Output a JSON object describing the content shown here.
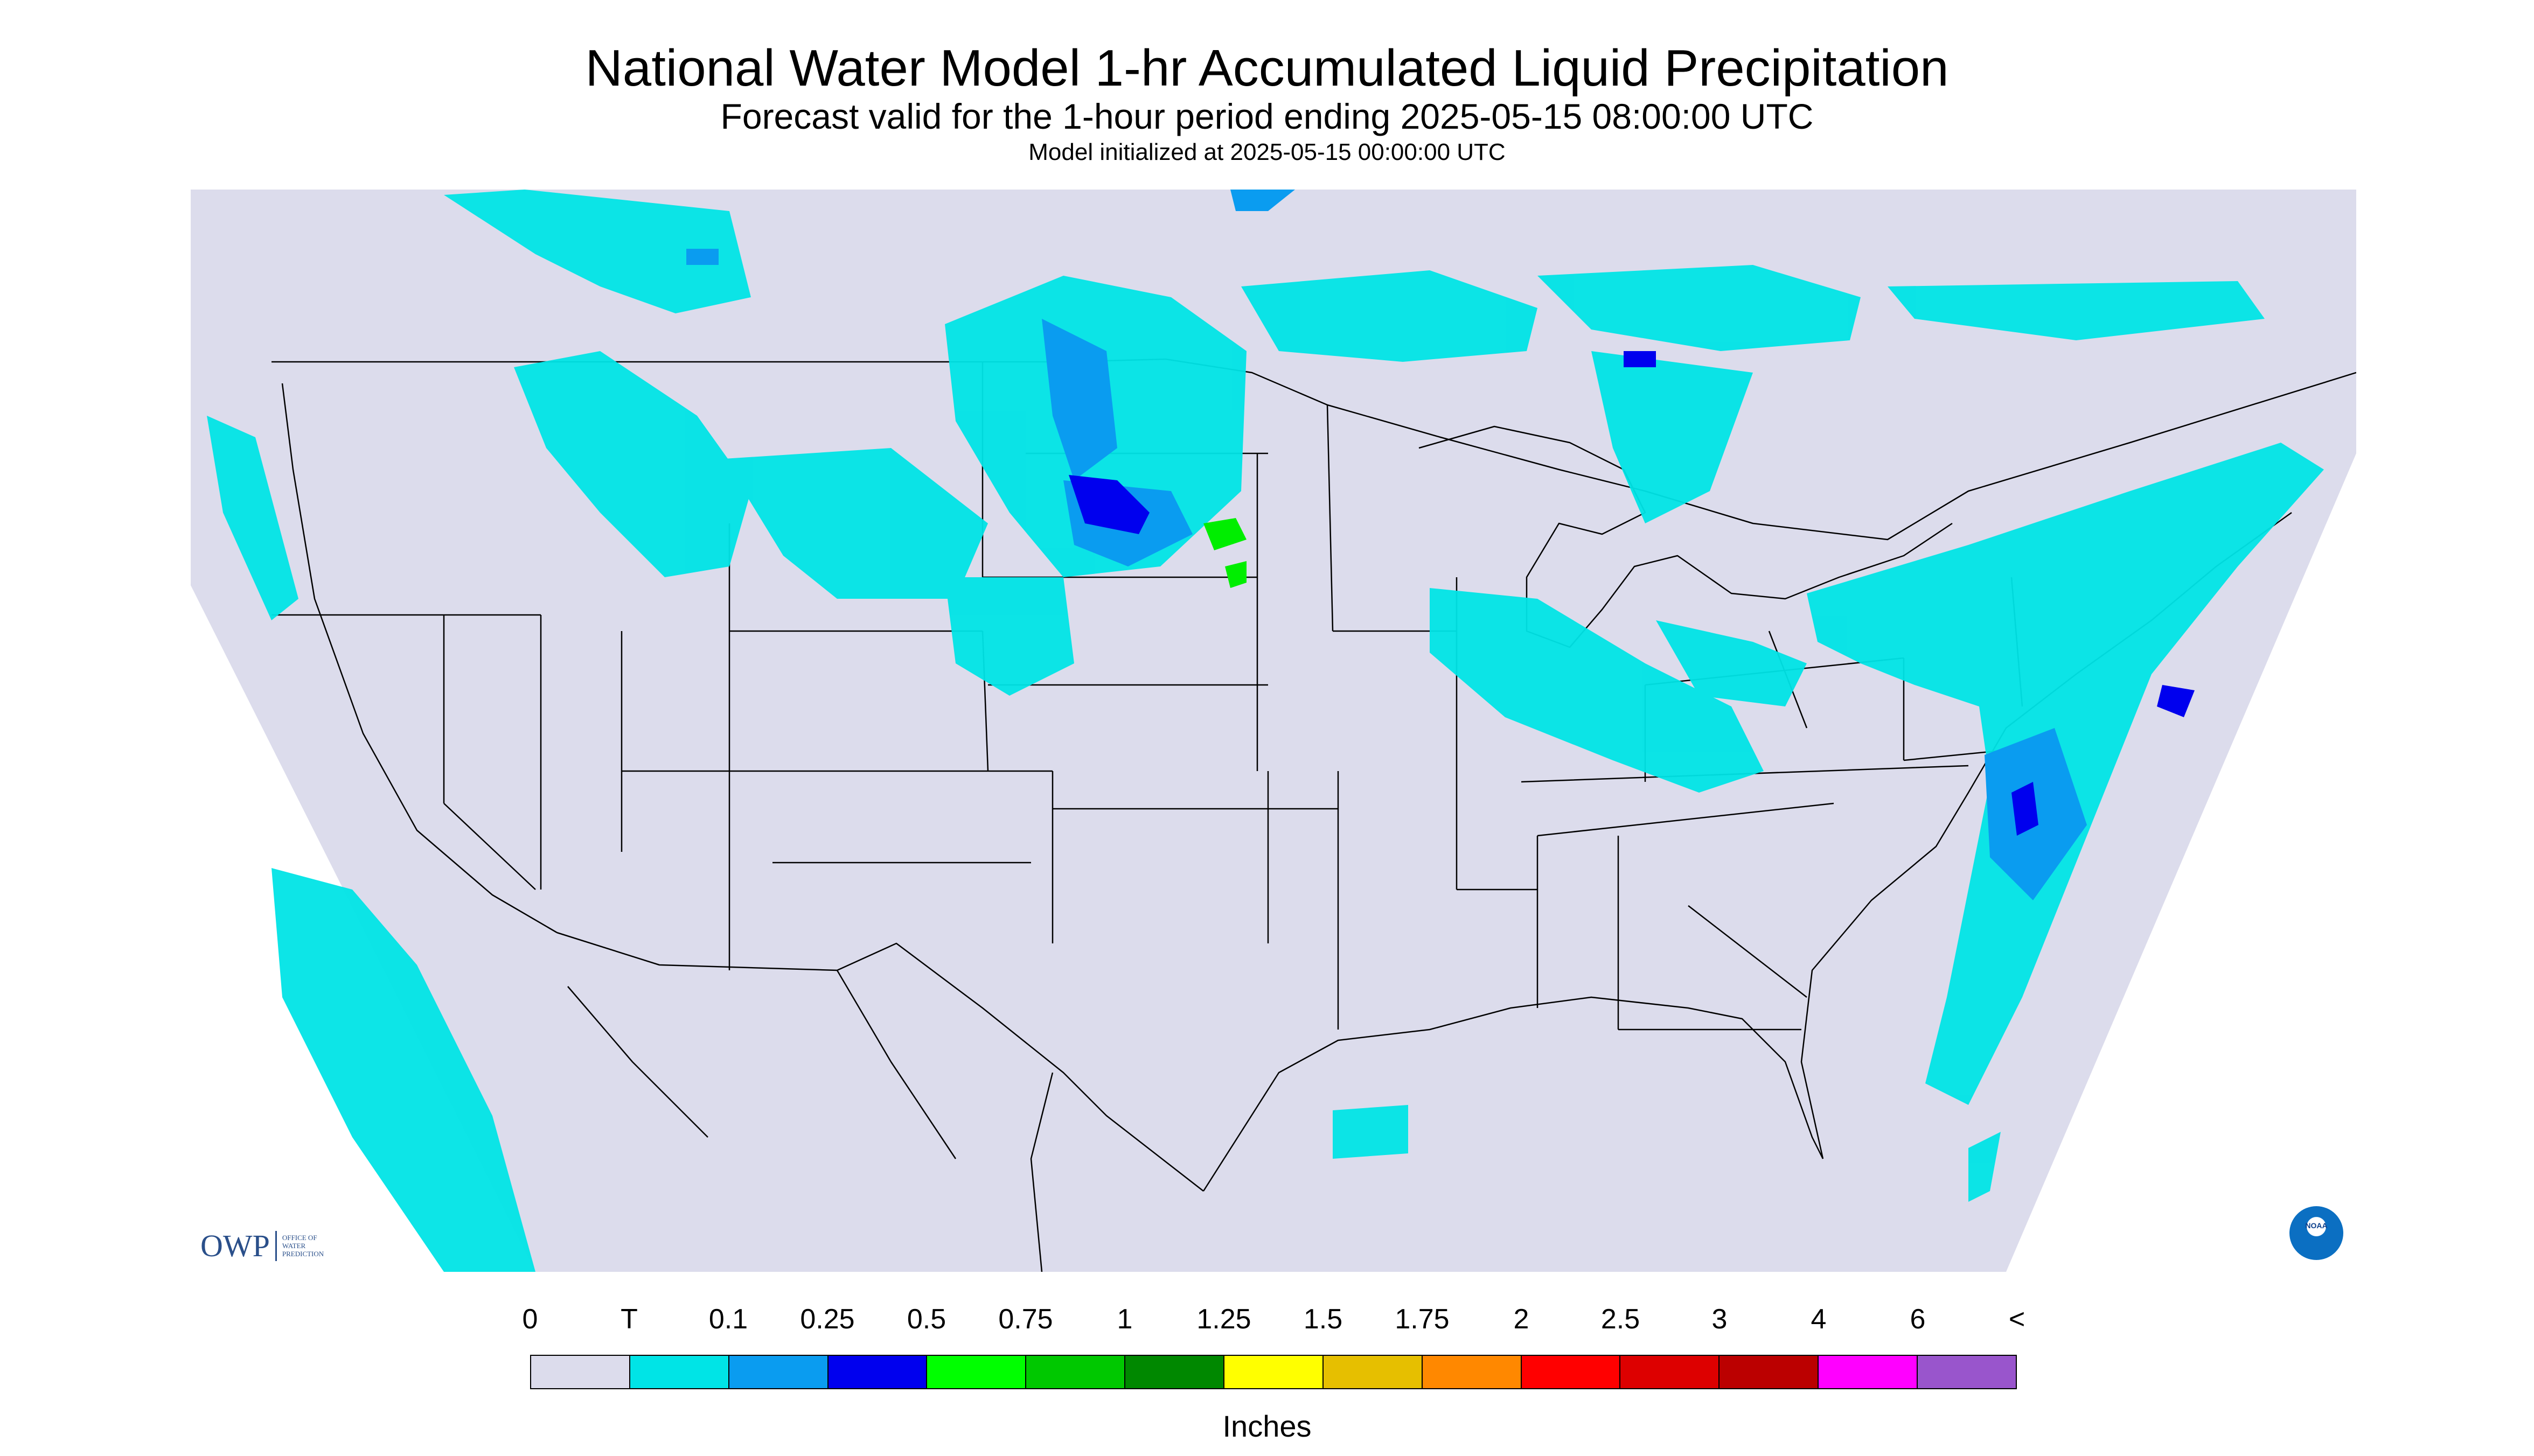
{
  "header": {
    "title": "National Water Model 1-hr Accumulated Liquid Precipitation",
    "subtitle": "Forecast valid for the 1-hour period ending 2025-05-15 08:00:00 UTC",
    "init": "Model initialized at 2025-05-15 00:00:00 UTC"
  },
  "logos": {
    "owp_mark": "OWP",
    "owp_text": [
      "OFFICE OF",
      "WATER",
      "PREDICTION"
    ],
    "noaa_text": "NOAA"
  },
  "colors": {
    "background_region": "#dcdcec",
    "trace": "#00e4e6",
    "light_blue": "#0a9cf0",
    "blue": "#0000ee",
    "green": "#00ee00",
    "border_line": "#000000"
  },
  "legend": {
    "labels": [
      "0",
      "T",
      "0.1",
      "0.25",
      "0.5",
      "0.75",
      "1",
      "1.25",
      "1.5",
      "1.75",
      "2",
      "2.5",
      "3",
      "4",
      "6",
      "<"
    ],
    "colors": [
      "#dcdcec",
      "#00e4e6",
      "#0a9cf0",
      "#0000ee",
      "#00ff00",
      "#00c800",
      "#008800",
      "#ffff00",
      "#e6bf00",
      "#ff8800",
      "#ff0000",
      "#dd0000",
      "#bb0000",
      "#ff00ff",
      "#9955cc"
    ],
    "units": "Inches"
  }
}
